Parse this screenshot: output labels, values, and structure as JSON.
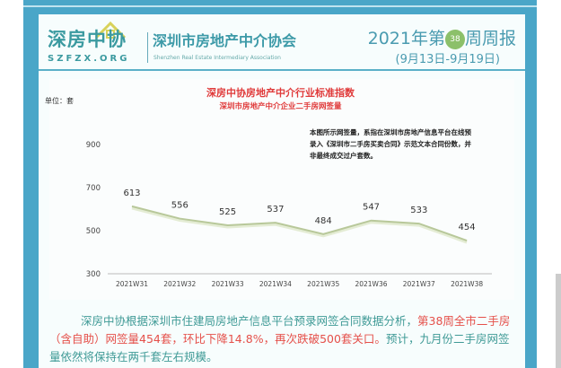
{
  "header": {
    "logo_cn": "深房中协",
    "logo_en": "SZFZX.ORG",
    "org_cn": "深圳市房地产中介协会",
    "org_en": "Shenzhen Real Estate Intermediary Association",
    "report_prefix": "2021年第",
    "week_badge": "38",
    "report_suffix": "周周报",
    "date_range": "(9月13日-9月19日)"
  },
  "colors": {
    "frame": "#4aa6c8",
    "title_red": "#e03a3a",
    "text_teal": "#3f9a96",
    "line": "#b8c89a"
  },
  "chart_data": {
    "type": "line",
    "title": "深房中协房地产中介行业标准指数",
    "subtitle": "深圳市房地产中介企业二手房网签量",
    "ylabel": "单位：套",
    "categories": [
      "2021W31",
      "2021W32",
      "2021W33",
      "2021W34",
      "2021W35",
      "2021W36",
      "2021W37",
      "2021W38"
    ],
    "values": [
      613,
      556,
      525,
      537,
      484,
      547,
      533,
      454
    ],
    "ylim": [
      300,
      1000
    ],
    "yticks": [
      300,
      500,
      700,
      900
    ],
    "grid": false,
    "note": "本图所示网签量，系指在深圳市房地产信息平台在线预录入《深圳市二手房买卖合同》示范文本合同份数，并非最终成交过户套数。"
  },
  "summary": {
    "part1": "深房中协根据深圳市住建局房地产信息平台预录网签合同数据分析，",
    "part2": "第38周全市二手房（含自助）网签量454套，环比下降14.8%，再次跌破500套关口。",
    "part3": "预计，九月份二手房网签量依然将保持在两千套左右规模。"
  }
}
